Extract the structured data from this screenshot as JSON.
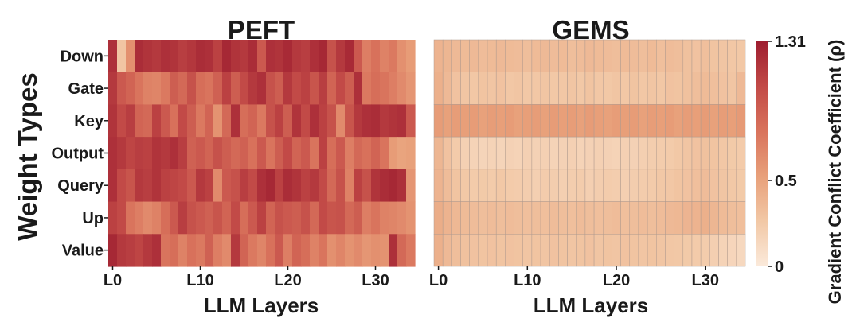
{
  "chart_data": [
    {
      "type": "heatmap",
      "title": "PEFT",
      "xlabel": "LLM Layers",
      "ylabel": "Weight Types",
      "x_tick_labels": [
        "L0",
        "L10",
        "L20",
        "L30"
      ],
      "x_tick_indices": [
        0,
        10,
        20,
        30
      ],
      "rows": [
        "Down",
        "Gate",
        "Key",
        "Output",
        "Query",
        "Up",
        "Value"
      ],
      "columns": 35,
      "values": [
        [
          1.2,
          0.28,
          0.62,
          1.22,
          1.18,
          1.15,
          1.2,
          1.18,
          1.12,
          1.16,
          1.22,
          1.2,
          1.1,
          1.25,
          1.18,
          1.15,
          1.22,
          0.95,
          1.2,
          1.18,
          1.24,
          1.15,
          1.12,
          1.2,
          1.25,
          1.0,
          1.15,
          1.24,
          0.95,
          0.72,
          0.8,
          0.7,
          0.75,
          0.62,
          0.55
        ],
        [
          1.15,
          0.95,
          0.88,
          0.78,
          0.7,
          0.68,
          0.75,
          0.92,
          0.85,
          1.0,
          0.82,
          0.78,
          0.9,
          1.1,
          0.92,
          1.05,
          1.15,
          1.2,
          1.0,
          0.92,
          1.15,
          1.05,
          1.1,
          0.98,
          1.12,
          0.88,
          1.05,
          0.92,
          1.2,
          0.75,
          0.82,
          0.78,
          0.72,
          0.65,
          0.58
        ],
        [
          1.18,
          1.05,
          1.12,
          0.88,
          0.85,
          1.1,
          0.95,
          0.8,
          1.05,
          0.92,
          0.75,
          0.88,
          0.6,
          0.85,
          1.2,
          0.82,
          0.88,
          0.75,
          1.0,
          1.1,
          0.92,
          1.18,
          1.05,
          1.2,
          1.1,
          1.0,
          0.65,
          0.98,
          1.15,
          1.2,
          1.22,
          1.15,
          1.18,
          1.2,
          0.95
        ],
        [
          1.2,
          1.15,
          1.08,
          1.12,
          1.1,
          1.18,
          1.15,
          1.2,
          1.12,
          0.9,
          0.95,
          0.88,
          1.0,
          0.92,
          0.85,
          0.9,
          0.8,
          0.95,
          0.78,
          0.92,
          1.05,
          0.88,
          0.95,
          0.78,
          1.1,
          0.82,
          0.95,
          0.72,
          0.85,
          0.8,
          0.88,
          0.78,
          0.55,
          0.5,
          0.52
        ],
        [
          1.2,
          1.05,
          0.98,
          1.15,
          1.12,
          1.18,
          1.1,
          1.08,
          1.05,
          0.95,
          1.15,
          1.1,
          0.65,
          0.95,
          1.0,
          1.12,
          1.05,
          1.2,
          1.25,
          1.1,
          1.22,
          1.18,
          1.1,
          1.15,
          1.05,
          0.85,
          1.0,
          0.7,
          1.1,
          1.0,
          1.18,
          1.22,
          1.25,
          1.2,
          0.58
        ],
        [
          1.1,
          1.05,
          0.78,
          0.72,
          0.65,
          0.7,
          0.82,
          0.95,
          1.12,
          1.0,
          0.95,
          0.9,
          0.98,
          0.88,
          1.05,
          0.82,
          0.95,
          1.1,
          0.88,
          1.0,
          0.95,
          0.92,
          1.0,
          0.85,
          1.05,
          0.98,
          1.0,
          0.85,
          0.92,
          0.72,
          0.78,
          0.7,
          0.68,
          0.65,
          0.6
        ],
        [
          1.25,
          1.15,
          1.12,
          1.08,
          1.15,
          1.2,
          0.78,
          0.82,
          0.7,
          0.8,
          0.75,
          0.9,
          0.72,
          0.65,
          1.15,
          0.88,
          0.75,
          0.68,
          0.8,
          0.95,
          0.72,
          0.88,
          0.82,
          0.7,
          0.78,
          0.62,
          0.68,
          0.6,
          0.65,
          0.58,
          0.62,
          0.6,
          1.2,
          0.85,
          0.75
        ]
      ]
    },
    {
      "type": "heatmap",
      "title": "GEMS",
      "xlabel": "LLM Layers",
      "x_tick_labels": [
        "L0",
        "L10",
        "L20",
        "L30"
      ],
      "x_tick_indices": [
        0,
        10,
        20,
        30
      ],
      "rows": [
        "Down",
        "Gate",
        "Key",
        "Output",
        "Query",
        "Up",
        "Value"
      ],
      "columns": 35,
      "values": [
        [
          0.4,
          0.38,
          0.36,
          0.35,
          0.36,
          0.34,
          0.35,
          0.36,
          0.35,
          0.34,
          0.33,
          0.35,
          0.36,
          0.34,
          0.35,
          0.33,
          0.34,
          0.36,
          0.35,
          0.34,
          0.33,
          0.35,
          0.34,
          0.33,
          0.35,
          0.32,
          0.34,
          0.33,
          0.31,
          0.3,
          0.32,
          0.29,
          0.28,
          0.27,
          0.26
        ],
        [
          0.42,
          0.36,
          0.3,
          0.28,
          0.27,
          0.29,
          0.28,
          0.3,
          0.27,
          0.28,
          0.26,
          0.27,
          0.28,
          0.26,
          0.27,
          0.28,
          0.26,
          0.29,
          0.27,
          0.26,
          0.28,
          0.27,
          0.29,
          0.27,
          0.28,
          0.27,
          0.3,
          0.29,
          0.31,
          0.33,
          0.35,
          0.32,
          0.3,
          0.28,
          0.36
        ],
        [
          0.55,
          0.52,
          0.54,
          0.53,
          0.55,
          0.52,
          0.54,
          0.53,
          0.55,
          0.52,
          0.53,
          0.54,
          0.52,
          0.55,
          0.53,
          0.54,
          0.52,
          0.55,
          0.53,
          0.52,
          0.54,
          0.53,
          0.55,
          0.52,
          0.54,
          0.53,
          0.55,
          0.52,
          0.54,
          0.53,
          0.55,
          0.52,
          0.54,
          0.53,
          0.56
        ],
        [
          0.38,
          0.3,
          0.24,
          0.2,
          0.18,
          0.17,
          0.18,
          0.17,
          0.19,
          0.18,
          0.2,
          0.19,
          0.2,
          0.18,
          0.19,
          0.2,
          0.18,
          0.19,
          0.2,
          0.19,
          0.18,
          0.2,
          0.19,
          0.21,
          0.22,
          0.23,
          0.24,
          0.26,
          0.28,
          0.3,
          0.31,
          0.29,
          0.27,
          0.25,
          0.24
        ],
        [
          0.4,
          0.34,
          0.29,
          0.26,
          0.24,
          0.25,
          0.24,
          0.26,
          0.24,
          0.23,
          0.22,
          0.21,
          0.23,
          0.22,
          0.21,
          0.22,
          0.23,
          0.21,
          0.22,
          0.23,
          0.22,
          0.21,
          0.22,
          0.23,
          0.24,
          0.26,
          0.27,
          0.29,
          0.3,
          0.32,
          0.34,
          0.3,
          0.28,
          0.26,
          0.25
        ],
        [
          0.44,
          0.4,
          0.37,
          0.35,
          0.34,
          0.33,
          0.34,
          0.33,
          0.34,
          0.33,
          0.32,
          0.33,
          0.32,
          0.34,
          0.33,
          0.32,
          0.34,
          0.33,
          0.32,
          0.33,
          0.34,
          0.32,
          0.33,
          0.34,
          0.33,
          0.34,
          0.36,
          0.37,
          0.39,
          0.4,
          0.42,
          0.38,
          0.35,
          0.33,
          0.32
        ],
        [
          0.42,
          0.36,
          0.33,
          0.31,
          0.3,
          0.29,
          0.3,
          0.29,
          0.3,
          0.29,
          0.28,
          0.29,
          0.28,
          0.3,
          0.29,
          0.28,
          0.29,
          0.3,
          0.28,
          0.29,
          0.28,
          0.3,
          0.29,
          0.28,
          0.29,
          0.28,
          0.27,
          0.26,
          0.25,
          0.24,
          0.23,
          0.21,
          0.18,
          0.16,
          0.14
        ]
      ]
    }
  ],
  "colorbar": {
    "label": "Gradient Conflict Coefficient (ρ)",
    "min": 0,
    "max": 1.31,
    "ticks": [
      {
        "value": 1.31,
        "label": "1.31"
      },
      {
        "value": 0.5,
        "label": "0.5"
      },
      {
        "value": 0,
        "label": "0"
      }
    ],
    "colors": [
      "#fbeadb",
      "#f2c8a6",
      "#e8a07a",
      "#d9735c",
      "#c24a47",
      "#9e1e30"
    ]
  }
}
